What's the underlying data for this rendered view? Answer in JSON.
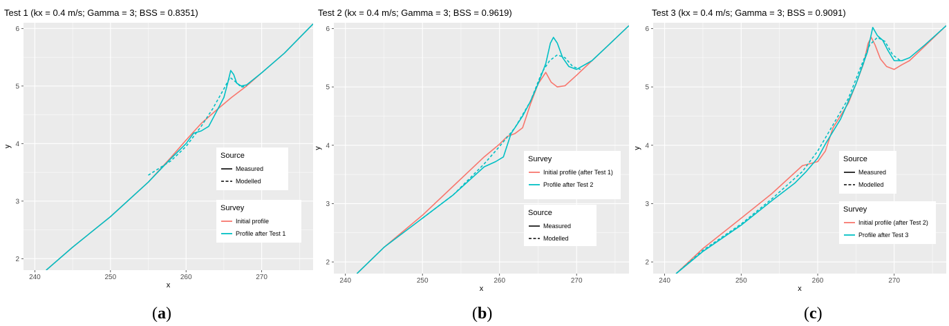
{
  "colors": {
    "initial": "#F8766D",
    "after": "#00BFC4",
    "panel": "#EBEBEB",
    "grid": "#FFFFFF"
  },
  "chart_data": [
    {
      "type": "line",
      "title": "Test 1 (kx = 0.4 m/s; Gamma = 3; BSS = 0.8351)",
      "caption": "a",
      "xlabel": "x",
      "ylabel": "y",
      "xlim": [
        238.5,
        276.8
      ],
      "ylim": [
        1.8,
        6.1
      ],
      "xticks": [
        240,
        250,
        260,
        270
      ],
      "yticks": [
        2,
        3,
        4,
        5,
        6
      ],
      "grid": true,
      "legend_order": [
        "source",
        "survey"
      ],
      "legend_source": {
        "title": "Source",
        "items": [
          "Measured",
          "Modelled"
        ]
      },
      "legend_survey": {
        "title": "Survey",
        "items": [
          "Initial profile",
          "Profile after Test 1"
        ]
      },
      "series": [
        {
          "name": "Initial profile",
          "source": "Measured",
          "color": "#F8766D",
          "points": [
            [
              241.5,
              1.8
            ],
            [
              245,
              2.2
            ],
            [
              250,
              2.73
            ],
            [
              255,
              3.33
            ],
            [
              258,
              3.76
            ],
            [
              260,
              4.06
            ],
            [
              262,
              4.35
            ],
            [
              264,
              4.58
            ],
            [
              266,
              4.8
            ],
            [
              268,
              5.0
            ],
            [
              270,
              5.23
            ],
            [
              273,
              5.57
            ],
            [
              276.8,
              6.08
            ]
          ]
        },
        {
          "name": "Profile after Test 1",
          "source": "Measured",
          "color": "#00BFC4",
          "points": [
            [
              241.5,
              1.8
            ],
            [
              245,
              2.2
            ],
            [
              250,
              2.73
            ],
            [
              255,
              3.33
            ],
            [
              258,
              3.74
            ],
            [
              260,
              4.0
            ],
            [
              261,
              4.18
            ],
            [
              262,
              4.22
            ],
            [
              263,
              4.3
            ],
            [
              264,
              4.55
            ],
            [
              265,
              4.8
            ],
            [
              265.5,
              5.05
            ],
            [
              265.9,
              5.27
            ],
            [
              266.3,
              5.2
            ],
            [
              266.7,
              5.05
            ],
            [
              267.3,
              5.0
            ],
            [
              268,
              5.02
            ],
            [
              270,
              5.23
            ],
            [
              273,
              5.57
            ],
            [
              276.8,
              6.08
            ]
          ]
        },
        {
          "name": "Profile after Test 1",
          "source": "Modelled",
          "color": "#00BFC4",
          "points": [
            [
              255,
              3.45
            ],
            [
              258,
              3.7
            ],
            [
              260,
              3.95
            ],
            [
              262,
              4.3
            ],
            [
              263.5,
              4.6
            ],
            [
              265,
              4.95
            ],
            [
              265.8,
              5.15
            ],
            [
              266.5,
              5.08
            ],
            [
              267.3,
              4.98
            ],
            [
              268,
              5.0
            ]
          ]
        }
      ]
    },
    {
      "type": "line",
      "title": "Test 2 (kx = 0.4 m/s; Gamma = 3; BSS = 0.9619)",
      "caption": "b",
      "xlabel": "x",
      "ylabel": "y",
      "xlim": [
        238.5,
        276.8
      ],
      "ylim": [
        1.8,
        6.1
      ],
      "xticks": [
        240,
        250,
        260,
        270
      ],
      "yticks": [
        2,
        3,
        4,
        5,
        6
      ],
      "grid": true,
      "legend_order": [
        "survey",
        "source"
      ],
      "legend_source": {
        "title": "Source",
        "items": [
          "Measured",
          "Modelled"
        ]
      },
      "legend_survey": {
        "title": "Survey",
        "items": [
          "Initial profile (after Test 1)",
          "Profile after Test 2"
        ]
      },
      "series": [
        {
          "name": "Initial profile (after Test 1)",
          "source": "Measured",
          "color": "#F8766D",
          "points": [
            [
              241.5,
              1.8
            ],
            [
              245,
              2.25
            ],
            [
              250,
              2.8
            ],
            [
              254,
              3.3
            ],
            [
              258,
              3.8
            ],
            [
              260,
              4.02
            ],
            [
              261,
              4.15
            ],
            [
              262,
              4.2
            ],
            [
              263,
              4.3
            ],
            [
              264,
              4.7
            ],
            [
              265,
              5.05
            ],
            [
              266,
              5.25
            ],
            [
              266.7,
              5.08
            ],
            [
              267.5,
              5.0
            ],
            [
              268.5,
              5.02
            ],
            [
              270,
              5.2
            ],
            [
              272,
              5.45
            ],
            [
              274,
              5.7
            ],
            [
              276.8,
              6.05
            ]
          ]
        },
        {
          "name": "Profile after Test 2",
          "source": "Measured",
          "color": "#00BFC4",
          "points": [
            [
              241.5,
              1.8
            ],
            [
              245,
              2.25
            ],
            [
              250,
              2.75
            ],
            [
              254,
              3.15
            ],
            [
              258,
              3.63
            ],
            [
              259.5,
              3.72
            ],
            [
              260.5,
              3.8
            ],
            [
              261.5,
              4.2
            ],
            [
              263,
              4.5
            ],
            [
              264,
              4.75
            ],
            [
              265,
              5.05
            ],
            [
              266,
              5.4
            ],
            [
              266.6,
              5.75
            ],
            [
              267,
              5.85
            ],
            [
              267.5,
              5.75
            ],
            [
              268.2,
              5.5
            ],
            [
              269,
              5.35
            ],
            [
              270,
              5.3
            ],
            [
              272,
              5.45
            ],
            [
              274,
              5.7
            ],
            [
              276.8,
              6.05
            ]
          ]
        },
        {
          "name": "Profile after Test 2",
          "source": "Modelled",
          "color": "#00BFC4",
          "points": [
            [
              250,
              2.75
            ],
            [
              254,
              3.15
            ],
            [
              258,
              3.68
            ],
            [
              260,
              3.98
            ],
            [
              262,
              4.3
            ],
            [
              264,
              4.75
            ],
            [
              265.5,
              5.25
            ],
            [
              266.5,
              5.45
            ],
            [
              267.5,
              5.55
            ],
            [
              268.5,
              5.5
            ],
            [
              269.5,
              5.35
            ],
            [
              270.5,
              5.3
            ]
          ]
        }
      ]
    },
    {
      "type": "line",
      "title": "Test 3 (kx = 0.4 m/s; Gamma = 3; BSS = 0.9091)",
      "caption": "c",
      "xlabel": "x",
      "ylabel": "y",
      "xlim": [
        238.5,
        276.8
      ],
      "ylim": [
        1.8,
        6.1
      ],
      "xticks": [
        240,
        250,
        260,
        270
      ],
      "yticks": [
        2,
        3,
        4,
        5,
        6
      ],
      "grid": true,
      "legend_order": [
        "source",
        "survey"
      ],
      "legend_source": {
        "title": "Source",
        "items": [
          "Measured",
          "Modelled"
        ]
      },
      "legend_survey": {
        "title": "Survey",
        "items": [
          "Initial profile (after Test 2)",
          "Profile after Test 3"
        ]
      },
      "series": [
        {
          "name": "Initial profile (after Test 2)",
          "source": "Measured",
          "color": "#F8766D",
          "points": [
            [
              241.5,
              1.8
            ],
            [
              245,
              2.23
            ],
            [
              250,
              2.75
            ],
            [
              254,
              3.17
            ],
            [
              258,
              3.65
            ],
            [
              260,
              3.72
            ],
            [
              261,
              3.9
            ],
            [
              262,
              4.3
            ],
            [
              264,
              4.72
            ],
            [
              265,
              5.05
            ],
            [
              266,
              5.4
            ],
            [
              266.6,
              5.75
            ],
            [
              267,
              5.85
            ],
            [
              267.5,
              5.72
            ],
            [
              268.2,
              5.48
            ],
            [
              269,
              5.35
            ],
            [
              270,
              5.3
            ],
            [
              271,
              5.38
            ],
            [
              272,
              5.45
            ],
            [
              274,
              5.7
            ],
            [
              276.8,
              6.05
            ]
          ]
        },
        {
          "name": "Profile after Test 3",
          "source": "Measured",
          "color": "#00BFC4",
          "points": [
            [
              241.5,
              1.8
            ],
            [
              245,
              2.18
            ],
            [
              250,
              2.63
            ],
            [
              254,
              3.05
            ],
            [
              257,
              3.35
            ],
            [
              258.5,
              3.55
            ],
            [
              260,
              3.78
            ],
            [
              261,
              4.02
            ],
            [
              263,
              4.45
            ],
            [
              265,
              5.05
            ],
            [
              266.5,
              5.6
            ],
            [
              267.2,
              6.02
            ],
            [
              267.8,
              5.88
            ],
            [
              268.5,
              5.8
            ],
            [
              269.2,
              5.62
            ],
            [
              270,
              5.45
            ],
            [
              271,
              5.45
            ],
            [
              272,
              5.5
            ],
            [
              274,
              5.72
            ],
            [
              276.8,
              6.05
            ]
          ]
        },
        {
          "name": "Profile after Test 3",
          "source": "Modelled",
          "color": "#00BFC4",
          "points": [
            [
              241.5,
              1.8
            ],
            [
              245,
              2.2
            ],
            [
              250,
              2.65
            ],
            [
              254,
              3.08
            ],
            [
              258,
              3.55
            ],
            [
              260,
              3.9
            ],
            [
              262,
              4.35
            ],
            [
              264,
              4.8
            ],
            [
              265.5,
              5.3
            ],
            [
              266.8,
              5.72
            ],
            [
              267.8,
              5.85
            ],
            [
              268.8,
              5.78
            ],
            [
              269.8,
              5.55
            ],
            [
              270.8,
              5.45
            ]
          ]
        }
      ]
    }
  ]
}
